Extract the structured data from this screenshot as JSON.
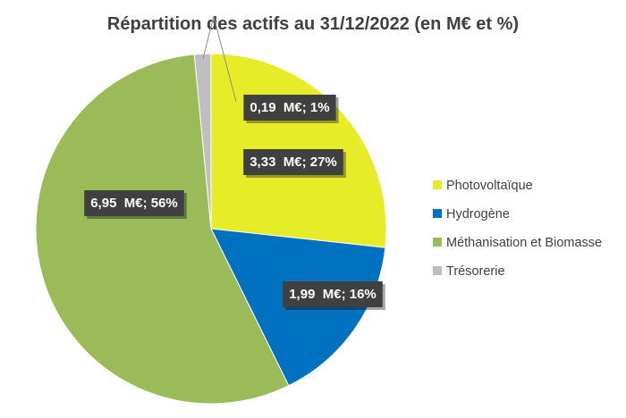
{
  "chart_data": {
    "type": "pie",
    "title": "Répartition des actifs au 31/12/2022 (en M€ et %)",
    "slices": [
      {
        "name": "Photovoltaïque",
        "value": 3.33,
        "percent": 27,
        "label": "3,33  M€; 27%",
        "color": "#e6ed28"
      },
      {
        "name": "Hydrogène",
        "value": 1.99,
        "percent": 16,
        "label": "1,99  M€; 16%",
        "color": "#0070c0"
      },
      {
        "name": "Méthanisation et Biomasse",
        "value": 6.95,
        "percent": 56,
        "label": "6,95  M€; 56%",
        "color": "#9bbb59"
      },
      {
        "name": "Trésorerie",
        "value": 0.19,
        "percent": 1,
        "label": "0,19  M€; 1%",
        "color": "#bfbfbf"
      }
    ],
    "legend_position": "right",
    "start_angle_deg": 0,
    "direction": "clockwise"
  }
}
